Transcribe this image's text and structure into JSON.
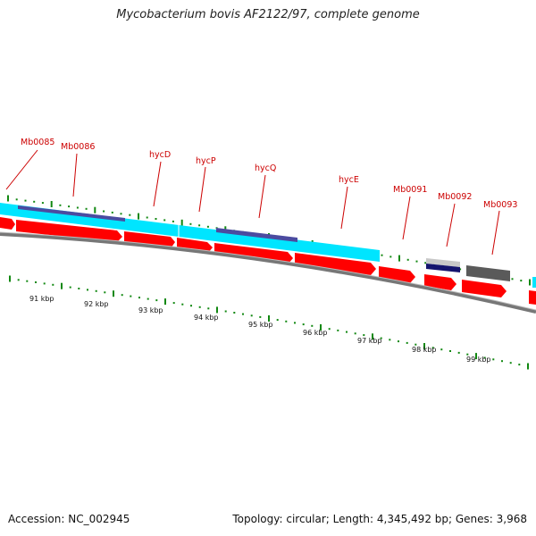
{
  "title": "Mycobacterium bovis AF2122/97, complete genome",
  "footer": {
    "accession": "Accession: NC_002945",
    "stats": "Topology: circular; Length: 4,345,492 bp; Genes: 3,968"
  },
  "colors": {
    "cds": "#ff0000",
    "operon": "#00e5ff",
    "operon_inner": "#4b4ba0",
    "gene_label": "#cc0000",
    "ticks": "#118811",
    "backbone": "#777777",
    "other_feature": "#555555"
  },
  "gene_labels": [
    "Mb0085",
    "Mb0086",
    "hycD",
    "hycP",
    "hycQ",
    "hycE",
    "Mb0091",
    "Mb0092",
    "Mb0093"
  ],
  "scale_labels": [
    "91 kbp",
    "92 kbp",
    "93 kbp",
    "94 kbp",
    "95 kbp",
    "96 kbp",
    "97 kbp",
    "98 kbp",
    "99 kbp"
  ]
}
